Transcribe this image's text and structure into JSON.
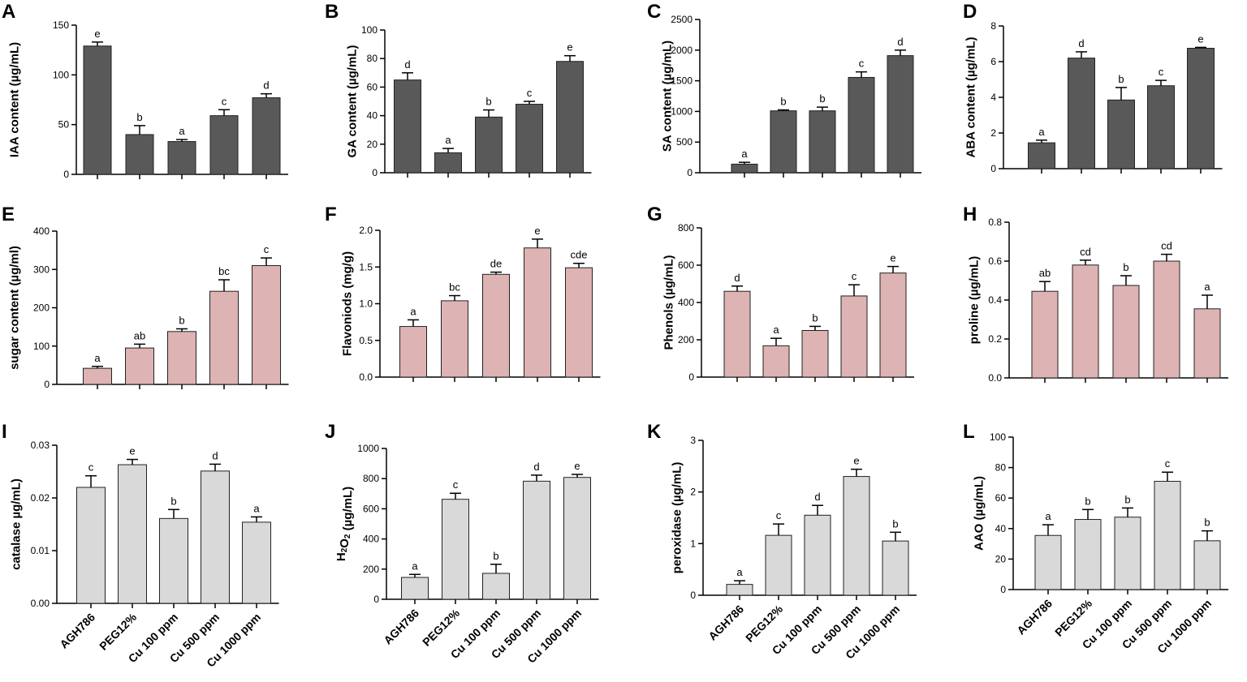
{
  "colors": {
    "dark": "#595959",
    "pink": "#ddb3b3",
    "light": "#d9d9d9",
    "axis": "#000000"
  },
  "categories": [
    "AGH786",
    "PEG12%",
    "Cu 100 ppm",
    "Cu 500 ppm",
    "Cu 1000 ppm"
  ],
  "chart_data": [
    {
      "panel": "A",
      "type": "bar",
      "ylabel": "IAA content (µg/mL)",
      "ylim": [
        0,
        150
      ],
      "ticks": [
        0,
        50,
        100,
        150
      ],
      "tick_labels": [
        "0",
        "50",
        "100",
        "150"
      ],
      "color": "dark",
      "values": [
        129,
        40,
        33,
        59,
        77
      ],
      "errors": [
        4,
        9,
        2,
        6,
        4
      ],
      "letters": [
        "e",
        "b",
        "a",
        "c",
        "d"
      ]
    },
    {
      "panel": "B",
      "type": "bar",
      "ylabel": "GA content (µg/mL)",
      "ylim": [
        0,
        100
      ],
      "ticks": [
        0,
        20,
        40,
        60,
        80,
        100
      ],
      "tick_labels": [
        "0",
        "20",
        "40",
        "60",
        "80",
        "100"
      ],
      "color": "dark",
      "values": [
        65,
        14,
        39,
        48,
        78
      ],
      "errors": [
        5,
        3,
        5,
        2,
        4
      ],
      "letters": [
        "d",
        "a",
        "b",
        "c",
        "e"
      ]
    },
    {
      "panel": "C",
      "type": "bar",
      "ylabel": "SA content (µg/mL)",
      "ylim": [
        0,
        2500
      ],
      "ticks": [
        0,
        500,
        1000,
        1500,
        2000,
        2500
      ],
      "tick_labels": [
        "0",
        "500",
        "1000",
        "1500",
        "2000",
        "2500"
      ],
      "color": "dark",
      "values": [
        140,
        1010,
        1010,
        1555,
        1910
      ],
      "errors": [
        30,
        15,
        60,
        90,
        90
      ],
      "letters": [
        "a",
        "b",
        "b",
        "c",
        "d"
      ]
    },
    {
      "panel": "D",
      "type": "bar",
      "ylabel": "ABA content (µg/mL)",
      "ylim": [
        0,
        8
      ],
      "ticks": [
        0,
        2,
        4,
        6,
        8
      ],
      "tick_labels": [
        "0",
        "2",
        "4",
        "6",
        "8"
      ],
      "color": "dark",
      "values": [
        1.45,
        6.2,
        3.85,
        4.65,
        6.75
      ],
      "errors": [
        0.15,
        0.35,
        0.7,
        0.3,
        0.05
      ],
      "letters": [
        "a",
        "d",
        "b",
        "c",
        "e"
      ]
    },
    {
      "panel": "E",
      "type": "bar",
      "ylabel": "sugar content (µg/ml)",
      "ylim": [
        0,
        400
      ],
      "ticks": [
        0,
        100,
        200,
        300,
        400
      ],
      "tick_labels": [
        "0",
        "100",
        "200",
        "300",
        "400"
      ],
      "color": "pink",
      "values": [
        42,
        95,
        138,
        243,
        310
      ],
      "errors": [
        5,
        10,
        7,
        30,
        20
      ],
      "letters": [
        "a",
        "ab",
        "b",
        "bc",
        "c"
      ]
    },
    {
      "panel": "F",
      "type": "bar",
      "ylabel": "Flavoniods (mg/g)",
      "ylim": [
        0,
        2.0
      ],
      "ticks": [
        0,
        0.5,
        1.0,
        1.5,
        2.0
      ],
      "tick_labels": [
        "0.0",
        "0.5",
        "1.0",
        "1.5",
        "2.0"
      ],
      "color": "pink",
      "values": [
        0.69,
        1.04,
        1.4,
        1.76,
        1.49
      ],
      "errors": [
        0.09,
        0.07,
        0.03,
        0.12,
        0.06
      ],
      "letters": [
        "a",
        "bc",
        "de",
        "e",
        "cde"
      ]
    },
    {
      "panel": "G",
      "type": "bar",
      "ylabel": "Phenols (µg/mL)",
      "ylim": [
        0,
        800
      ],
      "ticks": [
        0,
        200,
        400,
        600,
        800
      ],
      "tick_labels": [
        "0",
        "200",
        "400",
        "600",
        "800"
      ],
      "color": "pink",
      "values": [
        460,
        168,
        250,
        435,
        558
      ],
      "errors": [
        28,
        40,
        22,
        60,
        35
      ],
      "letters": [
        "d",
        "a",
        "b",
        "c",
        "e"
      ]
    },
    {
      "panel": "H",
      "type": "bar",
      "ylabel": "proline (µg/mL)",
      "ylim": [
        0,
        0.8
      ],
      "ticks": [
        0,
        0.2,
        0.4,
        0.6,
        0.8
      ],
      "tick_labels": [
        "0.0",
        "0.2",
        "0.4",
        "0.6",
        "0.8"
      ],
      "color": "pink",
      "values": [
        0.445,
        0.58,
        0.475,
        0.6,
        0.355
      ],
      "errors": [
        0.05,
        0.025,
        0.05,
        0.035,
        0.07
      ],
      "letters": [
        "ab",
        "cd",
        "b",
        "cd",
        "a"
      ]
    },
    {
      "panel": "I",
      "type": "bar",
      "ylabel": "catalase µg/mL)",
      "ylim": [
        0,
        0.03
      ],
      "ticks": [
        0,
        0.01,
        0.02,
        0.03
      ],
      "tick_labels": [
        "0.00",
        "0.01",
        "0.02",
        "0.03"
      ],
      "color": "light",
      "values": [
        0.022,
        0.0263,
        0.0161,
        0.0251,
        0.0154
      ],
      "errors": [
        0.0022,
        0.001,
        0.0017,
        0.0013,
        0.001
      ],
      "letters": [
        "c",
        "e",
        "b",
        "d",
        "a"
      ]
    },
    {
      "panel": "J",
      "type": "bar",
      "ylabel": "H2O2 (µg/mL)",
      "ylabel_main": "H",
      "ylabel_sub1": "2",
      "ylabel_mid": "O",
      "ylabel_sub2": "2",
      "ylabel_unit": " (µg/mL)",
      "ylim": [
        0,
        1000
      ],
      "ticks": [
        0,
        200,
        400,
        600,
        800,
        1000
      ],
      "tick_labels": [
        "0",
        "200",
        "400",
        "600",
        "800",
        "1000"
      ],
      "color": "light",
      "values": [
        145,
        663,
        172,
        783,
        808
      ],
      "errors": [
        20,
        40,
        60,
        40,
        20
      ],
      "letters": [
        "a",
        "c",
        "b",
        "d",
        "e"
      ]
    },
    {
      "panel": "K",
      "type": "bar",
      "ylabel": "peroxidase (µg/mL)",
      "ylim": [
        0,
        3
      ],
      "ticks": [
        0,
        1,
        2,
        3
      ],
      "tick_labels": [
        "0",
        "1",
        "2",
        "3"
      ],
      "color": "light",
      "values": [
        0.21,
        1.16,
        1.55,
        2.3,
        1.05
      ],
      "errors": [
        0.07,
        0.22,
        0.19,
        0.14,
        0.17
      ],
      "letters": [
        "a",
        "c",
        "d",
        "e",
        "b"
      ]
    },
    {
      "panel": "L",
      "type": "bar",
      "ylabel": "AAO (µg/mL)",
      "ylim": [
        0,
        100
      ],
      "ticks": [
        0,
        20,
        40,
        60,
        80,
        100
      ],
      "tick_labels": [
        "0",
        "20",
        "40",
        "60",
        "80",
        "100"
      ],
      "color": "light",
      "values": [
        35.5,
        46,
        47.5,
        71,
        32
      ],
      "errors": [
        7,
        6.5,
        6,
        6,
        6.5
      ],
      "letters": [
        "a",
        "b",
        "b",
        "c",
        "b"
      ]
    }
  ]
}
